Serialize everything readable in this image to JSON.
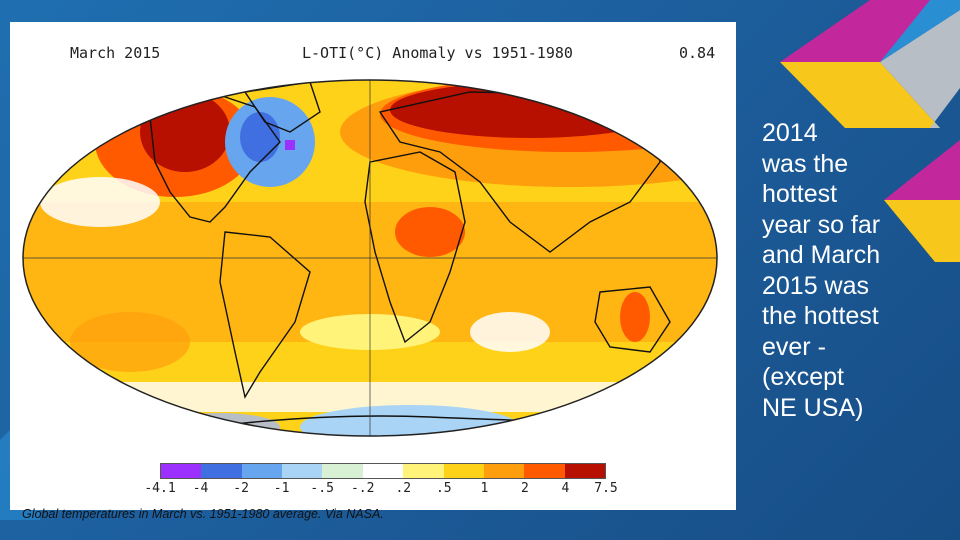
{
  "map_header": {
    "left": "March 2015",
    "center": "L-OTI(°C) Anomaly vs 1951-1980",
    "right": "0.84"
  },
  "legend": {
    "ticks": [
      "-4.1",
      "-4",
      "-2",
      "-1",
      "-.5",
      "-.2",
      ".2",
      ".5",
      "1",
      "2",
      "4",
      "7.5"
    ],
    "colors": [
      "#9b30ff",
      "#3f6fe0",
      "#67a6ee",
      "#a9d4f6",
      "#d8f0d4",
      "#ffffff",
      "#fff37a",
      "#ffd21a",
      "#ff9e0c",
      "#ff5a00",
      "#b81000"
    ]
  },
  "caption": "Global temperatures in March vs. 1951-1980 average. Via NASA.",
  "side_text": "2014\nwas the\nhottest\nyear so far\nand March\n2015 was\nthe hottest\never -\n(except\nNE USA)",
  "accent_colors": {
    "magenta": "#c2279b",
    "yellow": "#f7c81b",
    "blue": "#2a8ed3",
    "grey": "#b7bec6"
  }
}
